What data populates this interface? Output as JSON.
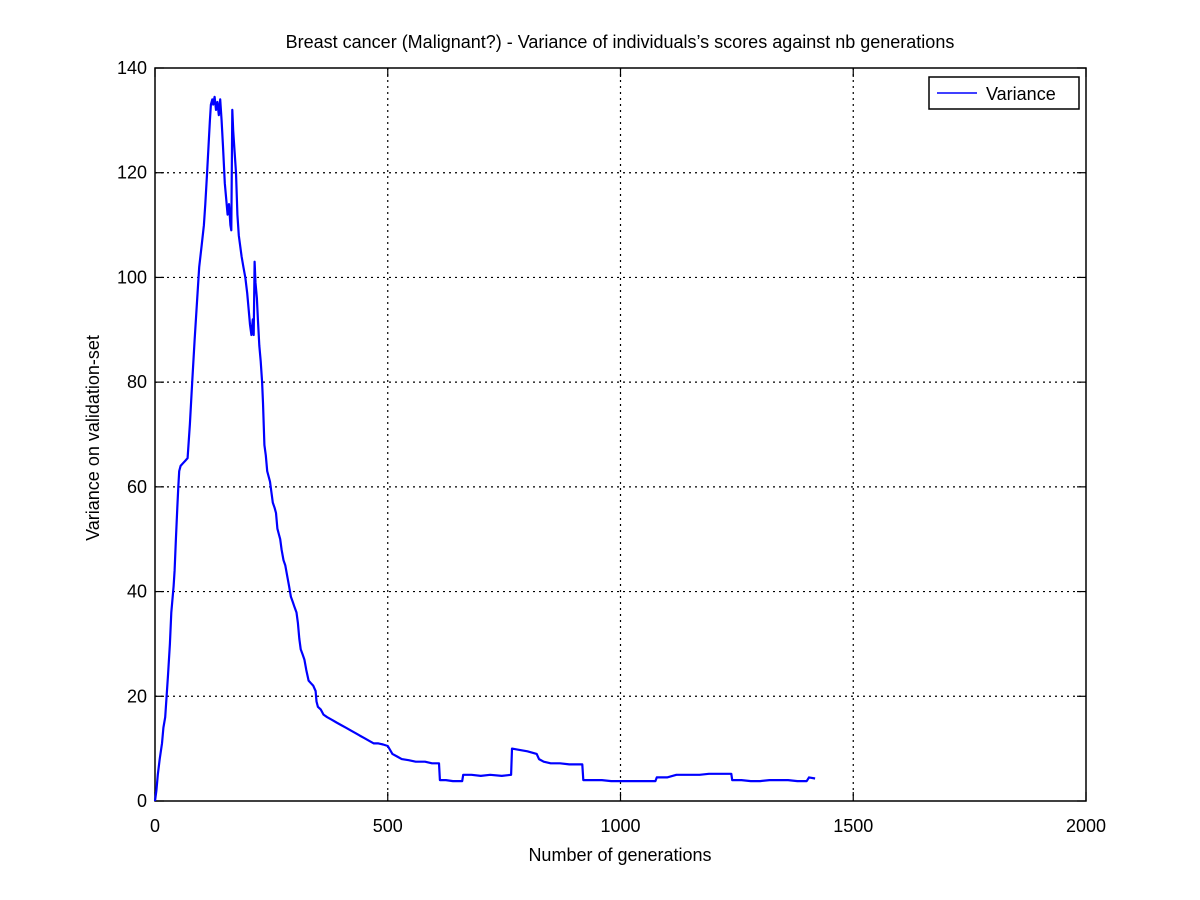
{
  "chart_data": {
    "type": "line",
    "title": "Breast cancer (Malignant?) - Variance of individuals’s scores against nb generations",
    "xlabel": "Number of generations",
    "ylabel": "Variance on validation-set",
    "xlim": [
      0,
      2000
    ],
    "ylim": [
      0,
      140
    ],
    "xticks": [
      0,
      500,
      1000,
      1500,
      2000
    ],
    "yticks": [
      0,
      20,
      40,
      60,
      80,
      100,
      120,
      140
    ],
    "grid": true,
    "legend_position": "top-right",
    "line_color": "#0000ff",
    "series": [
      {
        "name": "Variance",
        "points": [
          [
            0,
            0
          ],
          [
            3,
            2
          ],
          [
            6,
            5
          ],
          [
            10,
            8
          ],
          [
            15,
            11
          ],
          [
            18,
            14
          ],
          [
            22,
            16
          ],
          [
            25,
            20
          ],
          [
            28,
            24
          ],
          [
            32,
            30
          ],
          [
            35,
            36
          ],
          [
            40,
            41
          ],
          [
            42,
            44
          ],
          [
            45,
            50
          ],
          [
            48,
            56
          ],
          [
            50,
            60
          ],
          [
            52,
            63
          ],
          [
            55,
            64
          ],
          [
            60,
            64.5
          ],
          [
            65,
            65
          ],
          [
            70,
            65.5
          ],
          [
            75,
            72
          ],
          [
            80,
            80
          ],
          [
            85,
            88
          ],
          [
            90,
            95
          ],
          [
            95,
            102
          ],
          [
            100,
            106
          ],
          [
            105,
            110
          ],
          [
            108,
            114
          ],
          [
            112,
            120
          ],
          [
            115,
            125
          ],
          [
            118,
            130
          ],
          [
            120,
            133
          ],
          [
            123,
            134
          ],
          [
            125,
            133
          ],
          [
            128,
            134.5
          ],
          [
            131,
            132
          ],
          [
            134,
            133.5
          ],
          [
            137,
            131
          ],
          [
            140,
            134
          ],
          [
            143,
            130
          ],
          [
            146,
            125
          ],
          [
            150,
            118
          ],
          [
            153,
            115
          ],
          [
            156,
            112
          ],
          [
            159,
            114
          ],
          [
            162,
            110
          ],
          [
            164,
            109
          ],
          [
            166,
            132
          ],
          [
            168,
            128
          ],
          [
            171,
            124
          ],
          [
            174,
            120
          ],
          [
            177,
            112
          ],
          [
            180,
            108
          ],
          [
            183,
            106
          ],
          [
            186,
            104
          ],
          [
            190,
            102
          ],
          [
            194,
            100
          ],
          [
            198,
            97
          ],
          [
            201,
            94
          ],
          [
            204,
            91
          ],
          [
            207,
            89
          ],
          [
            210,
            92
          ],
          [
            212,
            89
          ],
          [
            214,
            103
          ],
          [
            216,
            99
          ],
          [
            219,
            96
          ],
          [
            221,
            92
          ],
          [
            224,
            87
          ],
          [
            227,
            84
          ],
          [
            230,
            80
          ],
          [
            232,
            76
          ],
          [
            235,
            68
          ],
          [
            238,
            66
          ],
          [
            241,
            63
          ],
          [
            244,
            62
          ],
          [
            247,
            61
          ],
          [
            250,
            59
          ],
          [
            253,
            57
          ],
          [
            257,
            56
          ],
          [
            260,
            55
          ],
          [
            263,
            52
          ],
          [
            266,
            51
          ],
          [
            269,
            50
          ],
          [
            272,
            48
          ],
          [
            276,
            46
          ],
          [
            280,
            45
          ],
          [
            284,
            43
          ],
          [
            288,
            41
          ],
          [
            292,
            39
          ],
          [
            296,
            38
          ],
          [
            300,
            37
          ],
          [
            304,
            36
          ],
          [
            307,
            34
          ],
          [
            310,
            31
          ],
          [
            313,
            29
          ],
          [
            317,
            28
          ],
          [
            321,
            27
          ],
          [
            325,
            25
          ],
          [
            330,
            23
          ],
          [
            335,
            22.5
          ],
          [
            340,
            22
          ],
          [
            345,
            21
          ],
          [
            347,
            19
          ],
          [
            350,
            18
          ],
          [
            356,
            17.5
          ],
          [
            362,
            16.5
          ],
          [
            370,
            16
          ],
          [
            380,
            15.5
          ],
          [
            390,
            15
          ],
          [
            400,
            14.5
          ],
          [
            410,
            14
          ],
          [
            420,
            13.5
          ],
          [
            430,
            13
          ],
          [
            440,
            12.5
          ],
          [
            450,
            12
          ],
          [
            460,
            11.5
          ],
          [
            470,
            11
          ],
          [
            480,
            11
          ],
          [
            490,
            10.8
          ],
          [
            500,
            10.5
          ],
          [
            510,
            9
          ],
          [
            520,
            8.5
          ],
          [
            530,
            8
          ],
          [
            545,
            7.8
          ],
          [
            560,
            7.5
          ],
          [
            580,
            7.5
          ],
          [
            595,
            7.2
          ],
          [
            610,
            7.2
          ],
          [
            612,
            4
          ],
          [
            625,
            4
          ],
          [
            640,
            3.8
          ],
          [
            660,
            3.8
          ],
          [
            662,
            5
          ],
          [
            680,
            5
          ],
          [
            700,
            4.8
          ],
          [
            720,
            5
          ],
          [
            745,
            4.8
          ],
          [
            765,
            5
          ],
          [
            767,
            10
          ],
          [
            780,
            9.8
          ],
          [
            800,
            9.5
          ],
          [
            820,
            9
          ],
          [
            825,
            8
          ],
          [
            835,
            7.5
          ],
          [
            850,
            7.2
          ],
          [
            870,
            7.2
          ],
          [
            890,
            7
          ],
          [
            900,
            7
          ],
          [
            918,
            7
          ],
          [
            920,
            4
          ],
          [
            940,
            4
          ],
          [
            960,
            4
          ],
          [
            980,
            3.8
          ],
          [
            1000,
            3.8
          ],
          [
            1020,
            3.8
          ],
          [
            1040,
            3.8
          ],
          [
            1075,
            3.8
          ],
          [
            1078,
            4.5
          ],
          [
            1100,
            4.5
          ],
          [
            1120,
            5
          ],
          [
            1150,
            5
          ],
          [
            1170,
            5
          ],
          [
            1190,
            5.2
          ],
          [
            1210,
            5.2
          ],
          [
            1238,
            5.2
          ],
          [
            1240,
            4
          ],
          [
            1260,
            4
          ],
          [
            1280,
            3.8
          ],
          [
            1300,
            3.8
          ],
          [
            1320,
            4
          ],
          [
            1340,
            4
          ],
          [
            1360,
            4
          ],
          [
            1380,
            3.8
          ],
          [
            1400,
            3.8
          ],
          [
            1405,
            4.5
          ],
          [
            1418,
            4.3
          ]
        ]
      }
    ]
  }
}
